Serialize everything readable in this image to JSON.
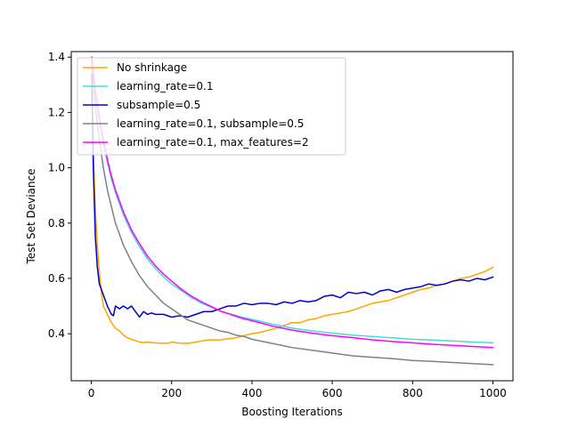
{
  "chart_data": {
    "type": "line",
    "xlabel": "Boosting Iterations",
    "ylabel": "Test Set Deviance",
    "xlim": [
      -50,
      1050
    ],
    "ylim": [
      0.23,
      1.42
    ],
    "xticks": [
      0,
      200,
      400,
      600,
      800,
      1000
    ],
    "yticks": [
      0.4,
      0.6,
      0.8,
      1.0,
      1.2,
      1.4
    ],
    "grid": false,
    "legend_position": "upper-left",
    "series": [
      {
        "name": "No shrinkage",
        "color": "#ffa500",
        "x": [
          1,
          5,
          10,
          15,
          20,
          25,
          30,
          40,
          50,
          60,
          70,
          80,
          90,
          100,
          110,
          120,
          130,
          140,
          150,
          170,
          190,
          200,
          220,
          240,
          260,
          280,
          300,
          320,
          340,
          360,
          380,
          400,
          420,
          440,
          460,
          480,
          500,
          520,
          540,
          560,
          580,
          600,
          620,
          640,
          660,
          680,
          700,
          720,
          740,
          760,
          780,
          800,
          820,
          840,
          860,
          880,
          900,
          920,
          940,
          960,
          980,
          1000
        ],
        "y": [
          1.39,
          1.05,
          0.85,
          0.72,
          0.62,
          0.55,
          0.5,
          0.47,
          0.44,
          0.42,
          0.41,
          0.395,
          0.385,
          0.38,
          0.375,
          0.37,
          0.368,
          0.37,
          0.368,
          0.366,
          0.365,
          0.37,
          0.366,
          0.365,
          0.37,
          0.375,
          0.378,
          0.377,
          0.382,
          0.385,
          0.393,
          0.4,
          0.405,
          0.412,
          0.42,
          0.43,
          0.44,
          0.44,
          0.45,
          0.455,
          0.465,
          0.47,
          0.475,
          0.48,
          0.49,
          0.5,
          0.51,
          0.515,
          0.52,
          0.53,
          0.54,
          0.55,
          0.56,
          0.565,
          0.575,
          0.58,
          0.59,
          0.6,
          0.605,
          0.615,
          0.625,
          0.64
        ]
      },
      {
        "name": "learning_rate=0.1",
        "color": "#40e0d0",
        "x": [
          1,
          10,
          20,
          30,
          40,
          50,
          60,
          80,
          100,
          120,
          140,
          160,
          180,
          200,
          225,
          250,
          275,
          300,
          325,
          350,
          375,
          400,
          450,
          500,
          550,
          600,
          650,
          700,
          750,
          800,
          850,
          900,
          950,
          1000
        ],
        "y": [
          1.4,
          1.27,
          1.17,
          1.09,
          1.02,
          0.96,
          0.91,
          0.83,
          0.765,
          0.715,
          0.67,
          0.635,
          0.605,
          0.58,
          0.555,
          0.53,
          0.51,
          0.495,
          0.48,
          0.47,
          0.46,
          0.452,
          0.435,
          0.42,
          0.41,
          0.402,
          0.395,
          0.39,
          0.385,
          0.38,
          0.377,
          0.374,
          0.37,
          0.367
        ]
      },
      {
        "name": "subsample=0.5",
        "color": "#0000cd",
        "x": [
          1,
          5,
          10,
          15,
          20,
          25,
          30,
          40,
          50,
          55,
          60,
          70,
          80,
          90,
          100,
          110,
          120,
          130,
          140,
          150,
          160,
          180,
          200,
          220,
          240,
          260,
          280,
          300,
          320,
          340,
          360,
          380,
          400,
          420,
          440,
          460,
          480,
          500,
          520,
          540,
          560,
          580,
          600,
          620,
          640,
          660,
          680,
          700,
          720,
          740,
          760,
          780,
          800,
          820,
          840,
          860,
          880,
          900,
          920,
          940,
          960,
          980,
          1000
        ],
        "y": [
          1.34,
          1.0,
          0.75,
          0.64,
          0.58,
          0.56,
          0.54,
          0.5,
          0.47,
          0.465,
          0.5,
          0.49,
          0.5,
          0.49,
          0.5,
          0.48,
          0.46,
          0.48,
          0.47,
          0.475,
          0.47,
          0.47,
          0.46,
          0.465,
          0.46,
          0.47,
          0.48,
          0.48,
          0.49,
          0.5,
          0.5,
          0.51,
          0.505,
          0.51,
          0.51,
          0.505,
          0.515,
          0.51,
          0.52,
          0.515,
          0.52,
          0.535,
          0.54,
          0.53,
          0.55,
          0.545,
          0.55,
          0.54,
          0.555,
          0.56,
          0.55,
          0.56,
          0.565,
          0.57,
          0.58,
          0.575,
          0.58,
          0.59,
          0.595,
          0.59,
          0.6,
          0.595,
          0.605
        ]
      },
      {
        "name": "learning_rate=0.1, subsample=0.5",
        "color": "#808080",
        "x": [
          1,
          10,
          20,
          30,
          40,
          50,
          60,
          80,
          100,
          120,
          140,
          160,
          180,
          200,
          220,
          240,
          260,
          280,
          300,
          320,
          340,
          360,
          380,
          400,
          450,
          500,
          550,
          600,
          650,
          700,
          750,
          800,
          850,
          900,
          950,
          1000
        ],
        "y": [
          1.38,
          1.22,
          1.1,
          1.0,
          0.92,
          0.86,
          0.8,
          0.72,
          0.66,
          0.61,
          0.57,
          0.54,
          0.51,
          0.49,
          0.47,
          0.45,
          0.44,
          0.43,
          0.42,
          0.41,
          0.405,
          0.395,
          0.39,
          0.38,
          0.365,
          0.35,
          0.34,
          0.33,
          0.32,
          0.315,
          0.31,
          0.303,
          0.3,
          0.296,
          0.292,
          0.288
        ]
      },
      {
        "name": "learning_rate=0.1, max_features=2",
        "color": "#ff00ff",
        "x": [
          1,
          10,
          20,
          30,
          40,
          50,
          60,
          80,
          100,
          120,
          140,
          160,
          180,
          200,
          225,
          250,
          275,
          300,
          325,
          350,
          375,
          400,
          450,
          500,
          550,
          600,
          650,
          700,
          750,
          800,
          850,
          900,
          950,
          1000
        ],
        "y": [
          1.4,
          1.28,
          1.18,
          1.1,
          1.03,
          0.97,
          0.92,
          0.84,
          0.775,
          0.725,
          0.68,
          0.645,
          0.615,
          0.59,
          0.56,
          0.535,
          0.515,
          0.497,
          0.48,
          0.468,
          0.456,
          0.447,
          0.428,
          0.413,
          0.402,
          0.393,
          0.386,
          0.378,
          0.372,
          0.367,
          0.362,
          0.358,
          0.354,
          0.35
        ]
      }
    ]
  }
}
